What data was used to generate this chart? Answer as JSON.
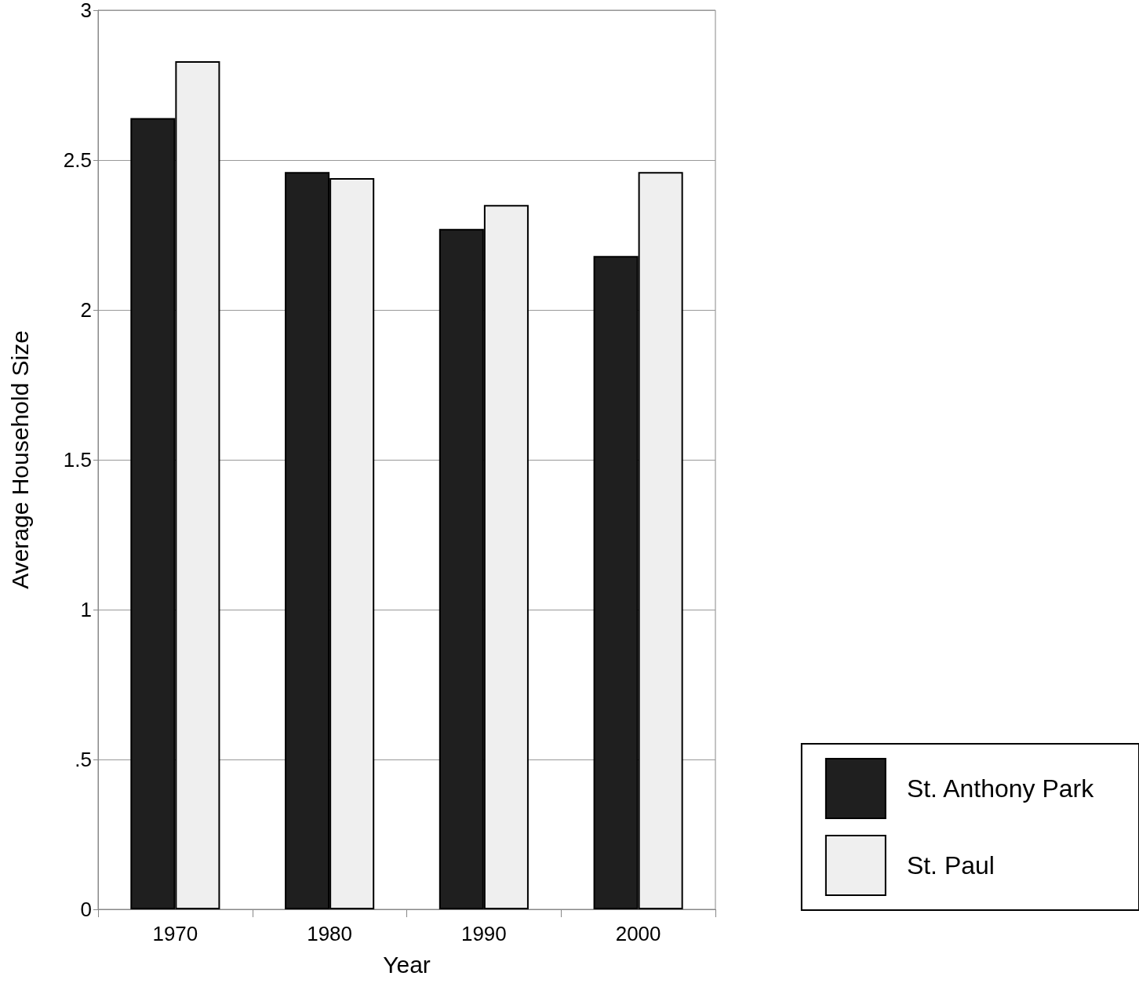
{
  "chart_data": {
    "type": "bar",
    "xlabel": "Year",
    "ylabel": "Average Household Size",
    "categories": [
      "1970",
      "1980",
      "1990",
      "2000"
    ],
    "series": [
      {
        "name": "St. Anthony Park",
        "color": "#1f1f1f",
        "values": [
          2.64,
          2.46,
          2.27,
          2.18
        ]
      },
      {
        "name": "St. Paul",
        "color": "#efefef",
        "values": [
          2.83,
          2.44,
          2.35,
          2.46
        ]
      }
    ],
    "ylim": [
      0,
      3
    ],
    "yticks": [
      0,
      {
        "value": 0.5,
        "label": ".5"
      },
      1,
      1.5,
      2,
      2.5,
      3
    ],
    "grid": "y",
    "legend": "bottom right"
  }
}
